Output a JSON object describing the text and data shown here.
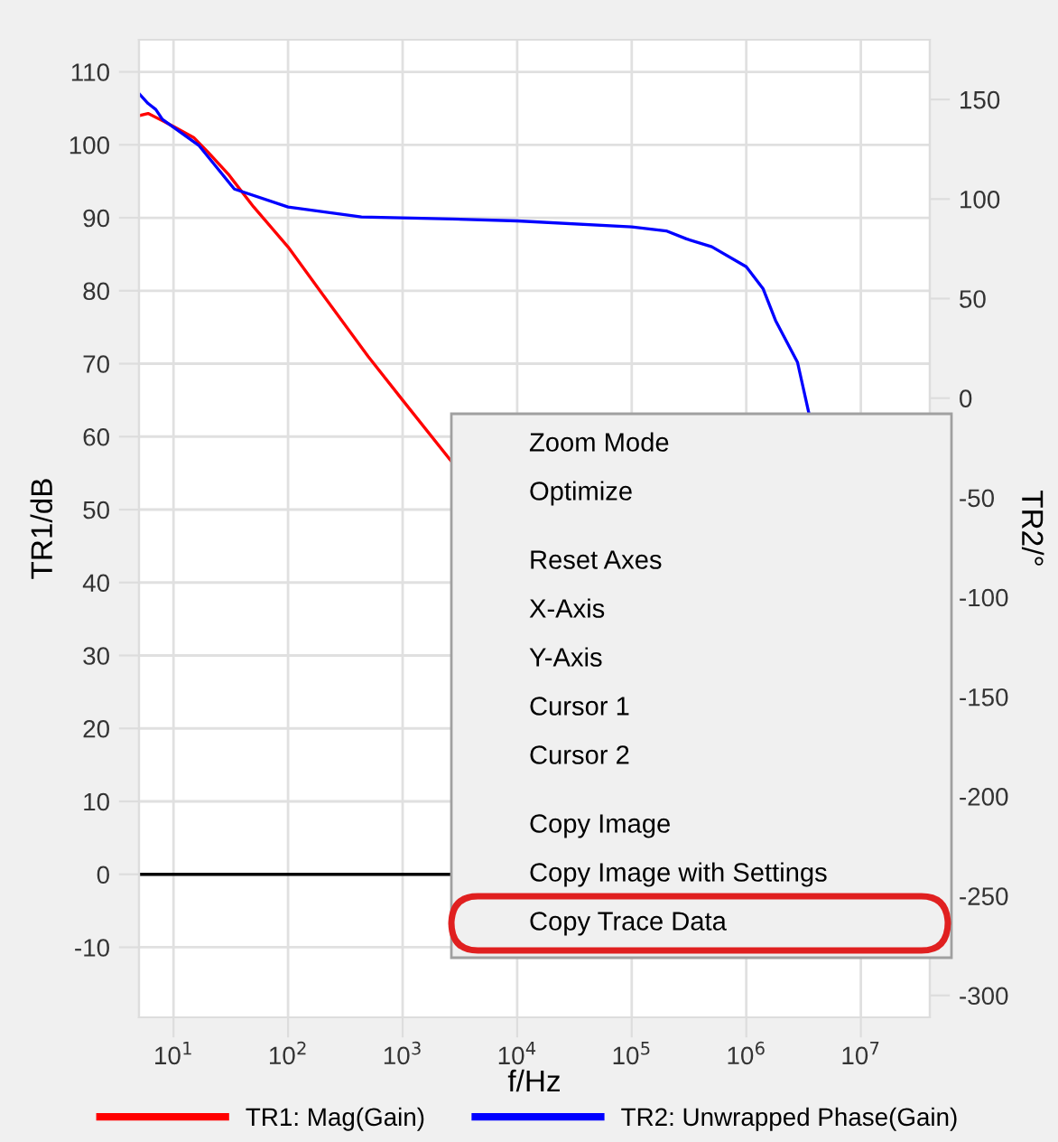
{
  "chart_data": {
    "type": "line",
    "xlabel": "f/Hz",
    "ylabel": "TR1/dB",
    "y2label": "TR2/°",
    "log": "x",
    "xlim": [
      5,
      40000000
    ],
    "xticks": [
      {
        "value": 10,
        "label": "10$^{1}$"
      },
      {
        "value": 100,
        "label": "10$^{2}$"
      },
      {
        "value": 1000,
        "label": "10$^{3}$"
      },
      {
        "value": 10000,
        "label": "10$^{4}$"
      },
      {
        "value": 100000,
        "label": "10$^{5}$"
      },
      {
        "value": 1000000,
        "label": "10$^{6}$"
      },
      {
        "value": 10000000,
        "label": "10$^{7}$"
      }
    ],
    "ylim": [
      -19.6,
      114.4
    ],
    "yticks": [
      -10,
      0,
      10,
      20,
      30,
      40,
      50,
      60,
      70,
      80,
      90,
      100,
      110
    ],
    "y2lim": [
      -311,
      180
    ],
    "y2ticks": [
      -300,
      -250,
      -200,
      -150,
      -100,
      -50,
      0,
      50,
      100,
      150
    ],
    "grid": true,
    "legend": "bottom",
    "ref_lines": [
      {
        "axis": "y",
        "value": 0,
        "color": "#000000"
      }
    ],
    "series": [
      {
        "name": "TR1: Mag(Gain)",
        "color": "#ff0000",
        "x": [
          5,
          6,
          8,
          10,
          15,
          20,
          30,
          50,
          100,
          200,
          500,
          1000,
          2700
        ],
        "values": [
          104,
          104.3,
          103.3,
          102.5,
          101,
          99,
          96,
          91.5,
          86,
          79.5,
          71,
          65,
          56.5
        ]
      },
      {
        "name": "TR2: Unwrapped Phase(Gain)",
        "color": "#0000ff",
        "axis": "y2",
        "x": [
          5,
          6,
          7,
          8,
          10,
          16.6,
          34,
          100,
          437,
          2700,
          10000,
          100000,
          200000,
          300000,
          500000,
          1000000,
          1400000,
          1800000,
          2800000,
          3500000
        ],
        "values": [
          153,
          148,
          145,
          140,
          136,
          127,
          105,
          96,
          91,
          90,
          89,
          86,
          84,
          80,
          76,
          66,
          55,
          39,
          18,
          -7
        ]
      }
    ],
    "annotations": [
      "Zoom Mode",
      "Optimize",
      "Reset Axes",
      "X-Axis",
      "Y-Axis",
      "Cursor 1",
      "Cursor 2",
      "Copy Image",
      "Copy Image with Settings",
      "Copy Trace Data"
    ]
  }
}
